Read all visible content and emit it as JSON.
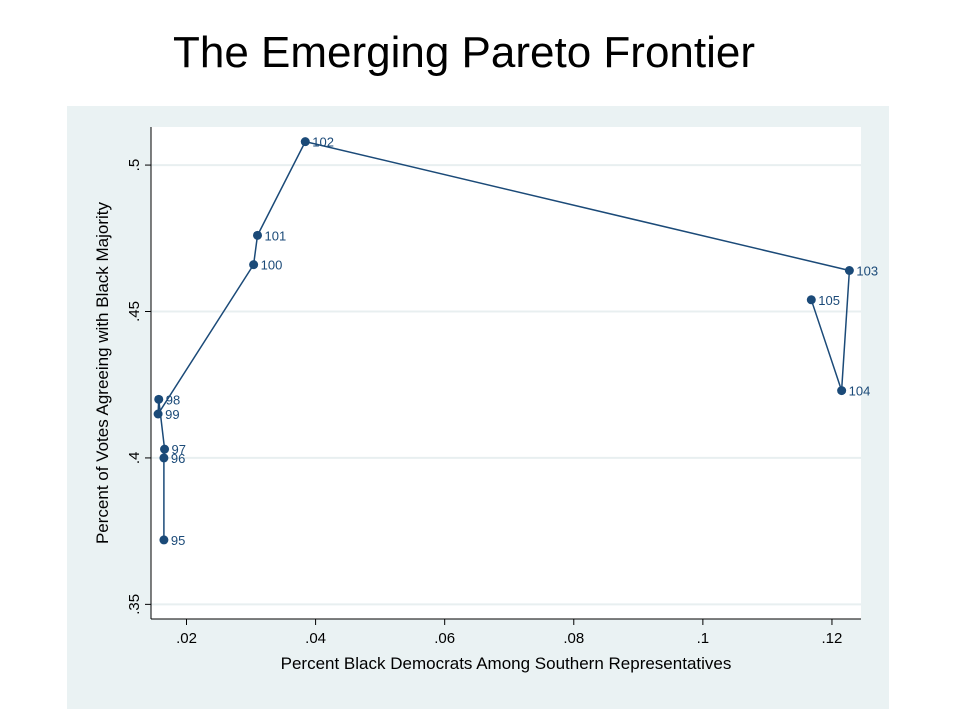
{
  "slide": {
    "title": "The Emerging Pareto Frontier"
  },
  "colors": {
    "panel_background": "#eaf2f3",
    "plot_background": "#ffffff",
    "series": "#1b4a78",
    "gridline": "#e8eff0",
    "axis": "#000000"
  },
  "chart_data": {
    "type": "line",
    "title": "",
    "xlabel": "Percent Black Democrats Among Southern Representatives",
    "ylabel": "Percent of Votes Agreeing with Black Majority",
    "xlim": [
      0.0145,
      0.1245
    ],
    "ylim": [
      0.345,
      0.513
    ],
    "x_ticks": [
      0.02,
      0.04,
      0.06,
      0.08,
      0.1,
      0.12
    ],
    "x_tick_labels": [
      ".02",
      ".04",
      ".06",
      ".08",
      ".1",
      ".12"
    ],
    "y_ticks": [
      0.35,
      0.4,
      0.45,
      0.5
    ],
    "y_tick_labels": [
      ".35",
      ".4",
      ".45",
      ".5"
    ],
    "grid": true,
    "legend": "none",
    "series": [
      {
        "points": [
          {
            "label": "95",
            "x": 0.0165,
            "y": 0.372
          },
          {
            "label": "96",
            "x": 0.0165,
            "y": 0.4
          },
          {
            "label": "97",
            "x": 0.0166,
            "y": 0.403
          },
          {
            "label": "98",
            "x": 0.0157,
            "y": 0.42
          },
          {
            "label": "99",
            "x": 0.0156,
            "y": 0.415
          },
          {
            "label": "100",
            "x": 0.0304,
            "y": 0.466
          },
          {
            "label": "101",
            "x": 0.031,
            "y": 0.476
          },
          {
            "label": "102",
            "x": 0.0384,
            "y": 0.508
          },
          {
            "label": "103",
            "x": 0.1227,
            "y": 0.464
          },
          {
            "label": "104",
            "x": 0.1215,
            "y": 0.423
          },
          {
            "label": "105",
            "x": 0.1168,
            "y": 0.454
          }
        ]
      }
    ]
  }
}
